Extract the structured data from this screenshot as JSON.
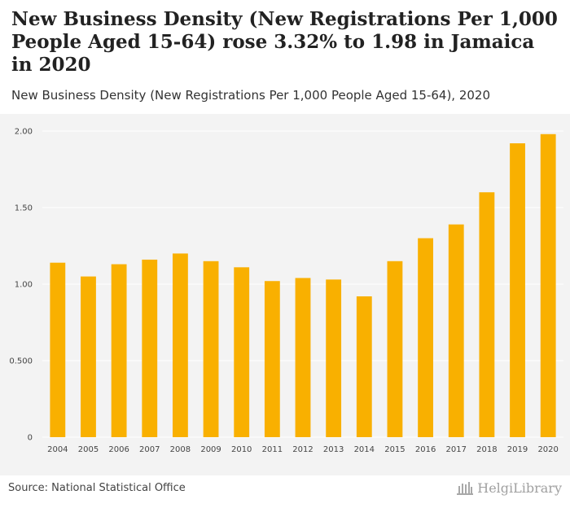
{
  "header": {
    "title": "New Business Density (New Registrations Per 1,000 People Aged 15-64) rose 3.32% to 1.98 in Jamaica in 2020",
    "subtitle": "New Business Density (New Registrations Per 1,000 People Aged 15-64), 2020"
  },
  "footer": {
    "source": "Source: National Statistical Office",
    "brand": "HelgiLibrary"
  },
  "colors": {
    "bar": "#f9b000",
    "plot_background": "#f3f3f3",
    "grid": "#ffffff"
  },
  "chart_data": {
    "type": "bar",
    "categories": [
      "2004",
      "2005",
      "2006",
      "2007",
      "2008",
      "2009",
      "2010",
      "2011",
      "2012",
      "2013",
      "2014",
      "2015",
      "2016",
      "2017",
      "2018",
      "2019",
      "2020"
    ],
    "values": [
      1.14,
      1.05,
      1.13,
      1.16,
      1.2,
      1.15,
      1.11,
      1.02,
      1.04,
      1.03,
      0.92,
      1.15,
      1.3,
      1.39,
      1.6,
      1.92,
      1.98
    ],
    "yticks": [
      0,
      0.5,
      1.0,
      1.5,
      2.0
    ],
    "ytick_labels": [
      "0",
      "0.500",
      "1.00",
      "1.50",
      "2.00"
    ],
    "ylim": [
      0,
      2.0
    ],
    "grid": true,
    "legend": "none"
  }
}
